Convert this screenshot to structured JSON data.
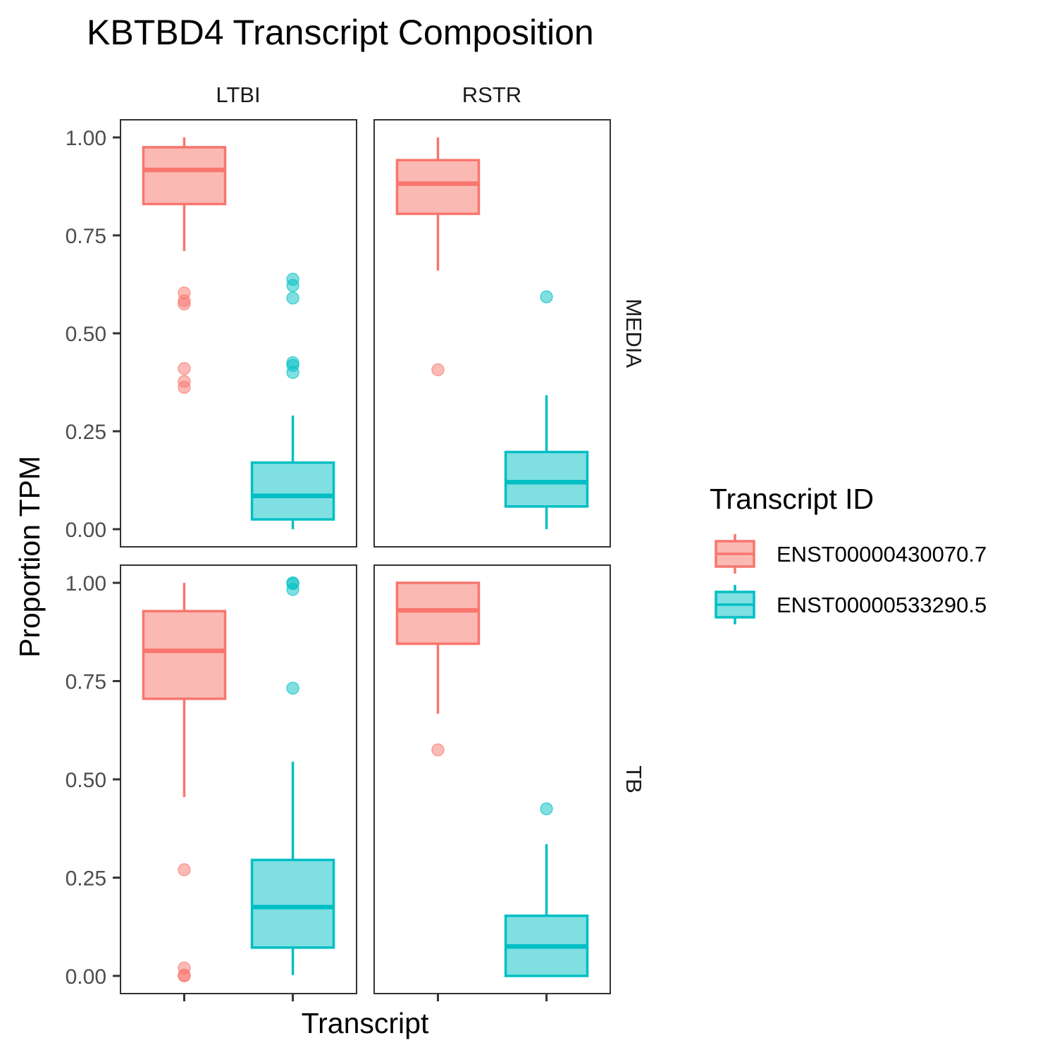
{
  "chart_data": {
    "type": "boxplot",
    "title": "KBTBD4 Transcript Composition",
    "xlabel": "Transcript",
    "ylabel": "Proportion TPM",
    "ylim": [
      -0.045,
      1.045
    ],
    "yticks": [
      "0.00",
      "0.25",
      "0.50",
      "0.75",
      "1.00"
    ],
    "ytick_values": [
      0,
      0.25,
      0.5,
      0.75,
      1.0
    ],
    "facet_columns": [
      "LTBI",
      "RSTR"
    ],
    "facet_rows": [
      "MEDIA",
      "TB"
    ],
    "legend": {
      "title": "Transcript ID",
      "position": "right",
      "items": [
        {
          "label": "ENST00000430070.7",
          "color": "#F8766D"
        },
        {
          "label": "ENST00000533290.5",
          "color": "#00BFC4"
        }
      ]
    },
    "grid": false,
    "panels": [
      {
        "column": "LTBI",
        "row": "MEDIA",
        "boxes": [
          {
            "transcript": "ENST00000430070.7",
            "whisker_low": 0.71,
            "q1": 0.83,
            "median": 0.917,
            "q3": 0.975,
            "whisker_high": 1.0,
            "outliers": [
              0.603,
              0.583,
              0.575,
              0.41,
              0.377,
              0.362
            ]
          },
          {
            "transcript": "ENST00000533290.5",
            "whisker_low": 0.0,
            "q1": 0.025,
            "median": 0.085,
            "q3": 0.17,
            "whisker_high": 0.29,
            "outliers": [
              0.638,
              0.622,
              0.59,
              0.425,
              0.418,
              0.4
            ]
          }
        ]
      },
      {
        "column": "RSTR",
        "row": "MEDIA",
        "boxes": [
          {
            "transcript": "ENST00000430070.7",
            "whisker_low": 0.66,
            "q1": 0.805,
            "median": 0.882,
            "q3": 0.942,
            "whisker_high": 1.0,
            "outliers": [
              0.407
            ]
          },
          {
            "transcript": "ENST00000533290.5",
            "whisker_low": 0.0,
            "q1": 0.058,
            "median": 0.12,
            "q3": 0.197,
            "whisker_high": 0.342,
            "outliers": [
              0.593
            ]
          }
        ]
      },
      {
        "column": "LTBI",
        "row": "TB",
        "boxes": [
          {
            "transcript": "ENST00000430070.7",
            "whisker_low": 0.455,
            "q1": 0.705,
            "median": 0.827,
            "q3": 0.928,
            "whisker_high": 1.0,
            "outliers": [
              0.27,
              0.02,
              0.002,
              0.0
            ]
          },
          {
            "transcript": "ENST00000533290.5",
            "whisker_low": 0.002,
            "q1": 0.072,
            "median": 0.175,
            "q3": 0.295,
            "whisker_high": 0.545,
            "outliers": [
              1.0,
              0.998,
              0.983,
              0.732
            ]
          }
        ]
      },
      {
        "column": "RSTR",
        "row": "TB",
        "boxes": [
          {
            "transcript": "ENST00000430070.7",
            "whisker_low": 0.667,
            "q1": 0.845,
            "median": 0.93,
            "q3": 1.0,
            "whisker_high": 1.0,
            "outliers": [
              0.575
            ]
          },
          {
            "transcript": "ENST00000533290.5",
            "whisker_low": 0.0,
            "q1": 0.0,
            "median": 0.075,
            "q3": 0.153,
            "whisker_high": 0.335,
            "outliers": [
              0.425
            ]
          }
        ]
      }
    ]
  }
}
